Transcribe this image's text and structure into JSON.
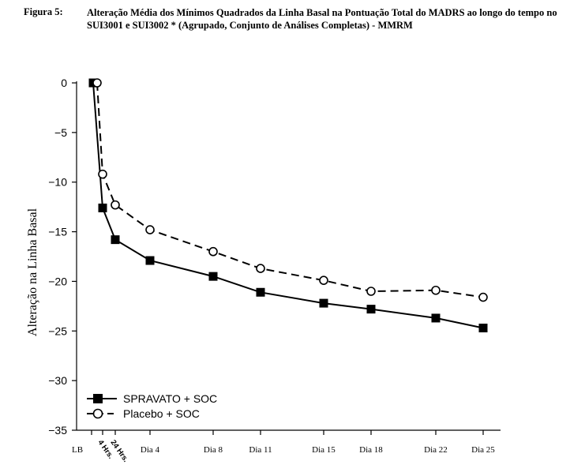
{
  "figure": {
    "label": "Figura 5:",
    "title": "Alteração Média dos Mínimos Quadrados da Linha Basal na Pontuação Total do MADRS ao longo do tempo no SUI3001 e SUI3002 * (Agrupado, Conjunto de Análises Completas) - MMRM"
  },
  "chart_data": {
    "type": "line",
    "title": "",
    "ylabel": "Alteração na Linha Basal",
    "xlabel": "",
    "ylim": [
      -35,
      0
    ],
    "yticks": [
      0,
      -5,
      -10,
      -15,
      -20,
      -25,
      -30,
      -35
    ],
    "ytick_labels": [
      "0",
      "−5",
      "−10",
      "−15",
      "−20",
      "−25",
      "−30",
      "−35"
    ],
    "categories": [
      "LB",
      "4 Hrs.",
      "24 Hrs.",
      "Dia 4",
      "Dia 8",
      "Dia 11",
      "Dia 15",
      "Dia 18",
      "Dia 22",
      "Dia 25"
    ],
    "x_positions_days": [
      0,
      0.17,
      1,
      4,
      8,
      11,
      15,
      18,
      22,
      25
    ],
    "grid": false,
    "legend_position": "bottom-left",
    "series": [
      {
        "name": "SPRAVATO + SOC",
        "marker": "filled-square",
        "line_style": "solid",
        "color": "#000000",
        "x": [
          0,
          0.17,
          1,
          4,
          8,
          11,
          15,
          18,
          22,
          25
        ],
        "values": [
          0,
          -12.6,
          -15.8,
          -17.9,
          -19.5,
          -21.1,
          -22.2,
          -22.8,
          -23.7,
          -24.7
        ]
      },
      {
        "name": "Placebo + SOC",
        "marker": "open-circle",
        "line_style": "dashed",
        "color": "#000000",
        "x": [
          0,
          0.17,
          1,
          4,
          8,
          11,
          15,
          18,
          22,
          25
        ],
        "values": [
          0,
          -9.2,
          -12.3,
          -14.8,
          -17.0,
          -18.7,
          -19.9,
          -21.0,
          -20.9,
          -21.6
        ]
      }
    ]
  }
}
